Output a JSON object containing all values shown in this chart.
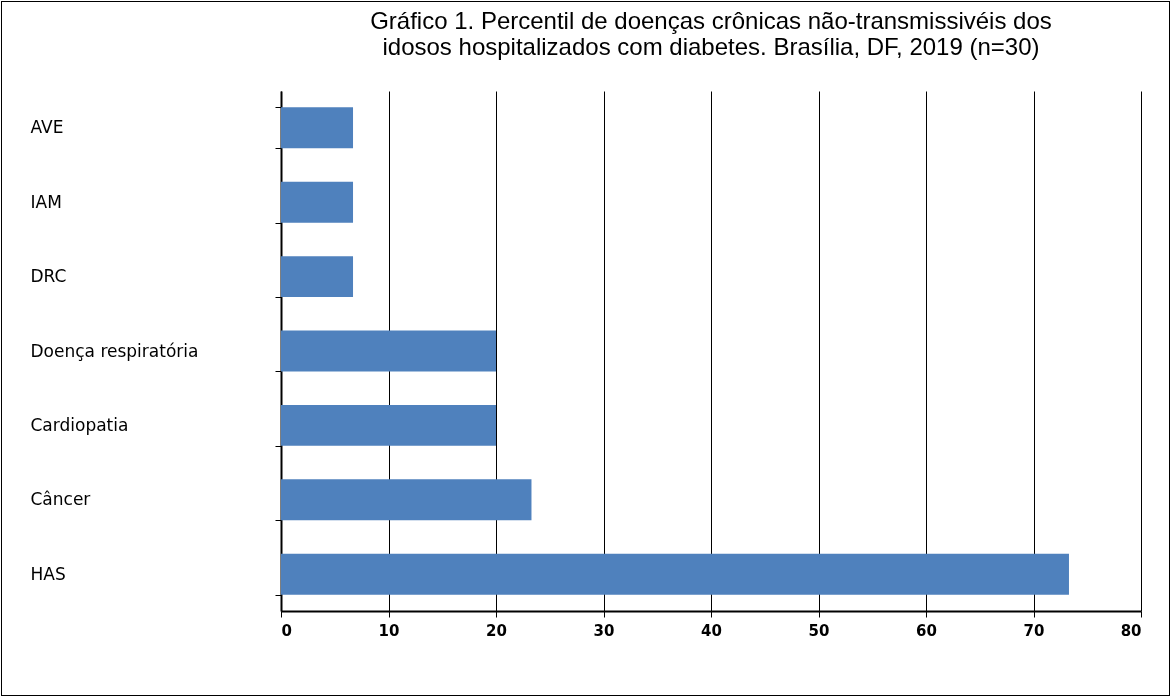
{
  "chart_data": {
    "type": "bar",
    "orientation": "horizontal",
    "title": "Gráfico 1. Percentil de doenças crônicas não-transmissivéis dos idosos hospitalizados com diabetes. Brasília, DF, 2019 (n=30)",
    "categories": [
      "AVE",
      "IAM",
      "DRC",
      "Doença respiratória",
      "Cardiopatia",
      "Câncer",
      "HAS"
    ],
    "values": [
      6.7,
      6.7,
      6.7,
      20,
      20,
      23.3,
      73.3
    ],
    "color": "#4f81bd",
    "xlim": [
      0,
      80
    ],
    "xticks": [
      0,
      10,
      20,
      30,
      40,
      50,
      60,
      70,
      80
    ],
    "grid": "x"
  }
}
